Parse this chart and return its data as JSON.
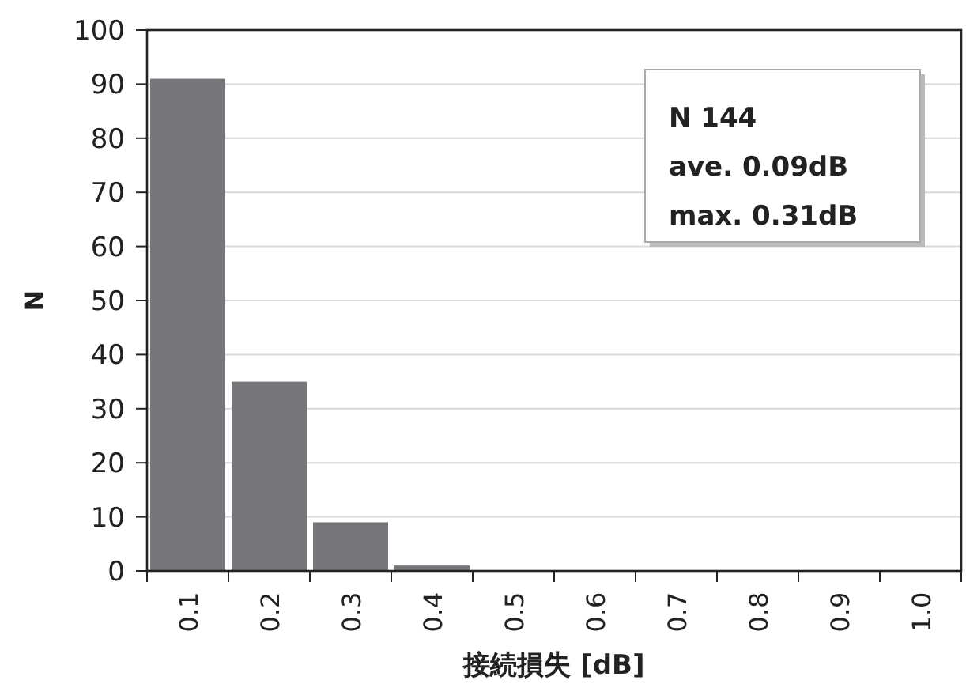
{
  "chart_data": {
    "type": "bar",
    "categories": [
      "0.1",
      "0.2",
      "0.3",
      "0.4",
      "0.5",
      "0.6",
      "0.7",
      "0.8",
      "0.9",
      "1.0"
    ],
    "values": [
      91,
      35,
      9,
      1,
      0,
      0,
      0,
      0,
      0,
      0
    ],
    "color": "#76777b",
    "xlabel": "接続損失 [dB]",
    "ylabel": "N",
    "ylim": [
      0,
      100
    ],
    "yticks": [
      0,
      10,
      20,
      30,
      40,
      50,
      60,
      70,
      80,
      90,
      100
    ],
    "grid": "y",
    "annotations": [
      "N 144",
      "ave. 0.09dB",
      "max. 0.31dB"
    ]
  }
}
